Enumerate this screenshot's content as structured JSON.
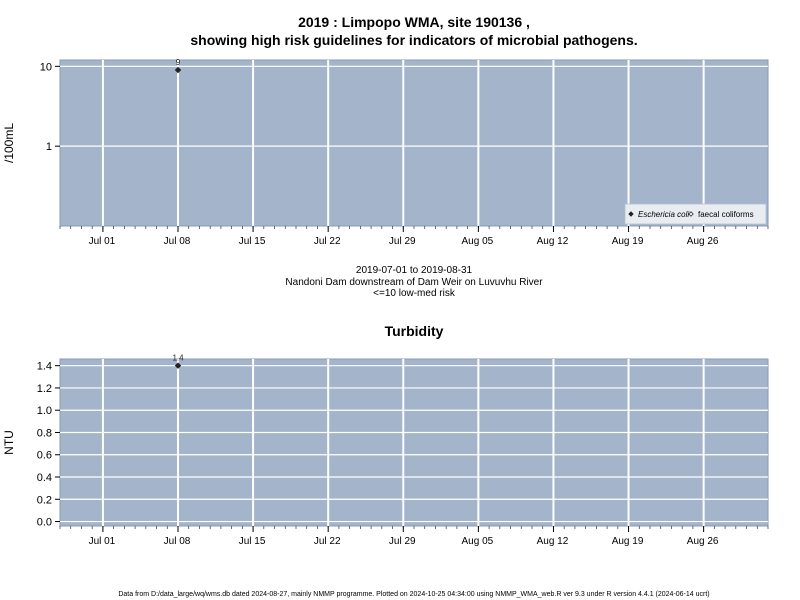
{
  "header": {
    "title_line1": "2019 : Limpopo WMA, site 190136 ,",
    "title_line2": "showing high risk guidelines for indicators of microbial pathogens."
  },
  "middle": {
    "date_range": "2019-07-01 to 2019-08-31",
    "site_description": "Nandoni Dam downstream of Dam Weir on Luvuvhu River",
    "risk_note": "<=10 low-med risk"
  },
  "footer": {
    "text": "Data from D:/data_large/wq/wms.db dated 2024-08-27, mainly NMMP programme. Plotted on 2024-10-25 04:34:00 using NMMP_WMA_web.R ver 9.3 under R version 4.4.1 (2024-06-14 ucrt)"
  },
  "colors": {
    "panel_bg": "#a3b4cb",
    "grid": "#ffffff",
    "point": "#222222"
  },
  "chart_data": [
    {
      "type": "scatter",
      "title": "",
      "ylabel": "/100mL",
      "xlabel": "",
      "y_scale": "log",
      "xlim": [
        "2019-06-27",
        "2019-09-01"
      ],
      "ylim": [
        0.1,
        12
      ],
      "y_ticks": [
        1,
        10
      ],
      "y_tick_labels": [
        "1",
        "10"
      ],
      "x_ticks": [
        "2019-07-01",
        "2019-07-08",
        "2019-07-15",
        "2019-07-22",
        "2019-07-29",
        "2019-08-05",
        "2019-08-12",
        "2019-08-19",
        "2019-08-26"
      ],
      "x_tick_labels": [
        "Jul 01",
        "Jul 08",
        "Jul 15",
        "Jul 22",
        "Jul 29",
        "Aug 05",
        "Aug 12",
        "Aug 19",
        "Aug 26"
      ],
      "grid": true,
      "legend_position": "bottom-right",
      "legend": [
        {
          "label": "Eschericia coli",
          "marker": "filled-diamond",
          "italic": true
        },
        {
          "label": "faecal coliforms",
          "marker": "open-diamond",
          "italic": false
        }
      ],
      "series": [
        {
          "name": "Eschericia coli",
          "points": [
            {
              "x": "2019-07-08",
              "y": 9,
              "label": "9"
            }
          ]
        },
        {
          "name": "faecal coliforms",
          "points": []
        }
      ]
    },
    {
      "type": "scatter",
      "title": "Turbidity",
      "ylabel": "NTU",
      "xlabel": "",
      "y_scale": "linear",
      "xlim": [
        "2019-06-27",
        "2019-09-01"
      ],
      "ylim": [
        -0.04,
        1.46
      ],
      "y_ticks": [
        0,
        0.2,
        0.4,
        0.6,
        0.8,
        1.0,
        1.2,
        1.4
      ],
      "y_tick_labels": [
        "0.0",
        "0.2",
        "0.4",
        "0.6",
        "0.8",
        "1.0",
        "1.2",
        "1.4"
      ],
      "x_ticks": [
        "2019-07-01",
        "2019-07-08",
        "2019-07-15",
        "2019-07-22",
        "2019-07-29",
        "2019-08-05",
        "2019-08-12",
        "2019-08-19",
        "2019-08-26"
      ],
      "x_tick_labels": [
        "Jul 01",
        "Jul 08",
        "Jul 15",
        "Jul 22",
        "Jul 29",
        "Aug 05",
        "Aug 12",
        "Aug 19",
        "Aug 26"
      ],
      "grid": true,
      "series": [
        {
          "name": "",
          "points": [
            {
              "x": "2019-07-08",
              "y": 1.4,
              "label": "1.4"
            }
          ]
        }
      ]
    }
  ]
}
